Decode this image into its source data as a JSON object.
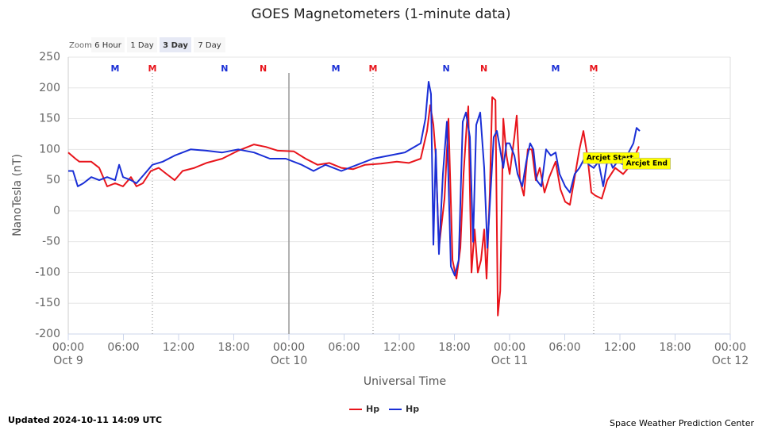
{
  "chart_data": {
    "type": "line",
    "title": "GOES Magnetometers (1-minute data)",
    "xlabel": "Universal Time",
    "ylabel": "NanoTesla (nT)",
    "xlim": [
      0,
      72
    ],
    "xticks": [
      {
        "value": 0,
        "label": "00:00"
      },
      {
        "value": 6,
        "label": "06:00"
      },
      {
        "value": 12,
        "label": "12:00"
      },
      {
        "value": 18,
        "label": "18:00"
      },
      {
        "value": 24,
        "label": "00:00"
      },
      {
        "value": 30,
        "label": "06:00"
      },
      {
        "value": 36,
        "label": "12:00"
      },
      {
        "value": 42,
        "label": "18:00"
      },
      {
        "value": 48,
        "label": "00:00"
      },
      {
        "value": 54,
        "label": "06:00"
      },
      {
        "value": 60,
        "label": "12:00"
      },
      {
        "value": 66,
        "label": "18:00"
      },
      {
        "value": 72,
        "label": "00:00"
      }
    ],
    "x_date_labels": [
      {
        "value": 0,
        "label": "Oct 9"
      },
      {
        "value": 24,
        "label": "Oct 10"
      },
      {
        "value": 48,
        "label": "Oct 11"
      },
      {
        "value": 72,
        "label": "Oct 12"
      }
    ],
    "ylim": [
      -200,
      250
    ],
    "yticks": [
      -200,
      -150,
      -100,
      -50,
      0,
      50,
      100,
      150,
      200,
      250
    ],
    "grid": true,
    "x_plot_lines": [
      {
        "value": 9.15,
        "dashed": true
      },
      {
        "value": 24,
        "dashed": false
      },
      {
        "value": 33.15,
        "dashed": true
      },
      {
        "value": 57.15,
        "dashed": true
      }
    ],
    "top_markers": [
      {
        "x": 5.09,
        "label": "M",
        "color": "#1a2fd6"
      },
      {
        "x": 9.15,
        "label": "M",
        "color": "#e8141b"
      },
      {
        "x": 17.0,
        "label": "N",
        "color": "#1a2fd6"
      },
      {
        "x": 21.2,
        "label": "N",
        "color": "#e8141b"
      },
      {
        "x": 29.1,
        "label": "M",
        "color": "#1a2fd6"
      },
      {
        "x": 33.15,
        "label": "M",
        "color": "#e8141b"
      },
      {
        "x": 41.1,
        "label": "N",
        "color": "#1a2fd6"
      },
      {
        "x": 45.2,
        "label": "N",
        "color": "#e8141b"
      },
      {
        "x": 53.0,
        "label": "M",
        "color": "#1a2fd6"
      },
      {
        "x": 57.15,
        "label": "M",
        "color": "#e8141b"
      }
    ],
    "annotations": [
      {
        "text": "Arcjet Start",
        "x": 56.1,
        "y": 86
      },
      {
        "text": "Arcjet End",
        "x": 60.4,
        "y": 77
      }
    ],
    "series": [
      {
        "name": "Hp",
        "color": "#e8141b",
        "x": [
          0,
          0.78,
          1.21,
          2.5,
          3.37,
          4.23,
          5.09,
          5.96,
          6.82,
          7.42,
          8.11,
          8.98,
          9.84,
          10.7,
          11.57,
          12.43,
          13.73,
          15.02,
          16.75,
          18.48,
          20.2,
          21.5,
          22.79,
          24.52,
          25.81,
          27.11,
          28.4,
          29.7,
          30.99,
          32.29,
          34.02,
          35.74,
          37.04,
          38.33,
          39.02,
          39.37,
          39.71,
          39.97,
          40.32,
          40.92,
          41.35,
          41.79,
          42.22,
          42.65,
          42.99,
          43.34,
          43.51,
          43.86,
          44.2,
          44.55,
          44.89,
          45.24,
          45.5,
          45.85,
          46.11,
          46.46,
          46.72,
          46.98,
          47.32,
          47.66,
          48.01,
          48.52,
          48.78,
          49.12,
          49.55,
          49.98,
          50.42,
          50.85,
          51.28,
          51.8,
          52.32,
          53.01,
          53.53,
          54.04,
          54.56,
          54.91,
          55.6,
          56.03,
          56.46,
          56.89,
          57.32,
          58.02,
          58.62,
          59.48,
          60.35,
          61.21,
          62.07
        ],
        "values": [
          95,
          85,
          80,
          80,
          70,
          40,
          45,
          40,
          55,
          40,
          45,
          65,
          70,
          60,
          50,
          65,
          70,
          78,
          85,
          98,
          108,
          104,
          98,
          97,
          85,
          75,
          78,
          70,
          68,
          75,
          77,
          80,
          78,
          85,
          130,
          172,
          140,
          90,
          -60,
          20,
          150,
          -80,
          -110,
          -60,
          60,
          140,
          170,
          -100,
          -30,
          -100,
          -80,
          -30,
          -110,
          30,
          185,
          180,
          -170,
          -130,
          150,
          90,
          60,
          120,
          155,
          50,
          25,
          100,
          100,
          50,
          70,
          30,
          55,
          80,
          35,
          15,
          10,
          40,
          100,
          130,
          90,
          30,
          25,
          20,
          50,
          70,
          60,
          75,
          105
        ]
      },
      {
        "name": "Hp",
        "color": "#1a2fd6",
        "x": [
          0,
          0.52,
          1.04,
          1.64,
          2.5,
          3.37,
          4.23,
          5.09,
          5.53,
          5.96,
          6.82,
          7.42,
          8.29,
          9.15,
          10.27,
          11.57,
          13.3,
          15.02,
          16.75,
          18.48,
          20.2,
          21.93,
          23.66,
          25.38,
          26.68,
          27.97,
          29.7,
          31.43,
          33.15,
          34.88,
          36.6,
          38.33,
          38.85,
          39.19,
          39.45,
          39.71,
          39.97,
          40.32,
          40.75,
          41.18,
          41.61,
          42.04,
          42.47,
          42.91,
          43.25,
          43.68,
          44.03,
          44.37,
          44.81,
          45.24,
          45.58,
          45.93,
          46.27,
          46.62,
          46.97,
          47.31,
          47.66,
          48.0,
          48.52,
          48.87,
          49.38,
          49.81,
          50.24,
          50.59,
          50.94,
          51.45,
          51.97,
          52.49,
          53.01,
          53.44,
          54.04,
          54.56,
          55.08,
          55.6,
          56.12,
          56.63,
          57.15,
          57.67,
          58.19,
          58.71,
          59.22,
          59.74,
          60.43,
          60.95,
          61.47,
          61.81,
          62.16
        ],
        "values": [
          65,
          65,
          40,
          45,
          55,
          50,
          55,
          50,
          75,
          55,
          50,
          45,
          60,
          75,
          80,
          90,
          100,
          98,
          95,
          100,
          95,
          85,
          85,
          75,
          65,
          75,
          65,
          75,
          85,
          90,
          95,
          110,
          150,
          210,
          190,
          -55,
          100,
          -70,
          60,
          145,
          -90,
          -105,
          -80,
          145,
          160,
          120,
          -50,
          140,
          160,
          70,
          -60,
          30,
          120,
          130,
          100,
          70,
          110,
          110,
          90,
          60,
          40,
          80,
          110,
          100,
          50,
          40,
          100,
          90,
          95,
          60,
          40,
          30,
          60,
          70,
          85,
          75,
          70,
          80,
          40,
          90,
          70,
          80,
          75,
          95,
          110,
          135,
          130
        ]
      }
    ]
  },
  "range_selector": {
    "label": "Zoom",
    "buttons": [
      "6 Hour",
      "1 Day",
      "3 Day",
      "7 Day"
    ],
    "selected": 2
  },
  "footer": {
    "updated": "Updated 2024-10-11 14:09 UTC",
    "credit": "Space Weather Prediction Center"
  }
}
